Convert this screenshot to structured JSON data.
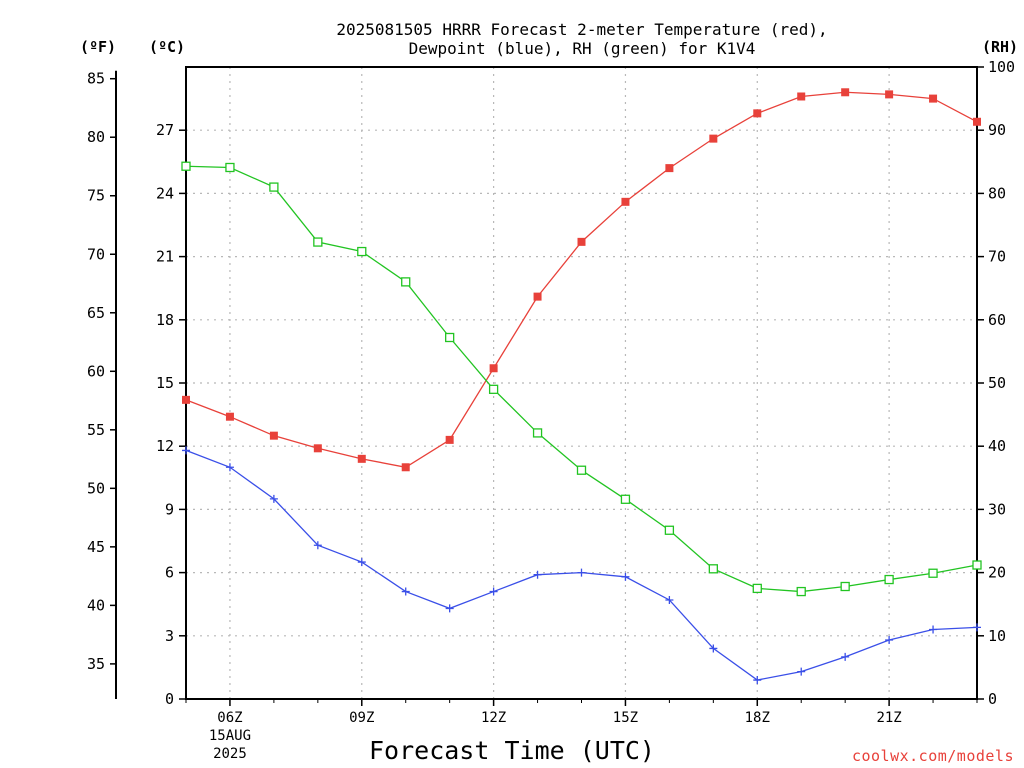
{
  "chart_data": {
    "type": "line",
    "title_lines": [
      "2025081505 HRRR Forecast 2-meter Temperature (red),",
      "Dewpoint (blue), RH (green) for K1V4"
    ],
    "xlabel": "Forecast Time (UTC)",
    "credit": "coolwx.com/models",
    "units": {
      "fahrenheit": "(ºF)",
      "celsius": "(ºC)",
      "rh": "(RH)"
    },
    "x_ticks": [
      "06Z",
      "09Z",
      "12Z",
      "15Z",
      "18Z",
      "21Z"
    ],
    "x_date": [
      "15AUG",
      "2025"
    ],
    "x_start_hour": 5,
    "x_end_hour": 23,
    "celsius_ticks": [
      0,
      3,
      6,
      9,
      12,
      15,
      18,
      21,
      24,
      27
    ],
    "fahrenheit_ticks": [
      35,
      40,
      45,
      50,
      55,
      60,
      65,
      70,
      75,
      80,
      85
    ],
    "rh_ticks": [
      0,
      10,
      20,
      30,
      40,
      50,
      60,
      70,
      80,
      90,
      100
    ],
    "ylim_celsius": [
      0,
      30
    ],
    "ylim_rh": [
      0,
      100
    ],
    "grid": true,
    "x_hours": [
      5,
      6,
      7,
      8,
      9,
      10,
      11,
      12,
      13,
      14,
      15,
      16,
      17,
      18,
      19,
      20,
      21,
      22,
      23
    ],
    "series": [
      {
        "name": "Temperature",
        "axis": "celsius",
        "color": "#e8413a",
        "marker": "filled-square",
        "values": [
          14.2,
          13.4,
          12.5,
          11.9,
          11.4,
          11.0,
          12.3,
          15.7,
          19.1,
          21.7,
          23.6,
          25.2,
          26.6,
          27.8,
          28.6,
          28.8,
          28.7,
          28.5,
          27.4
        ]
      },
      {
        "name": "Dewpoint",
        "axis": "celsius",
        "color": "#3a4fe8",
        "marker": "plus",
        "values": [
          11.8,
          11.0,
          9.5,
          7.3,
          6.5,
          5.1,
          4.3,
          5.1,
          5.9,
          6.0,
          5.8,
          4.7,
          2.4,
          0.9,
          1.3,
          2.0,
          2.8,
          3.3,
          3.4
        ]
      },
      {
        "name": "RH",
        "axis": "rh",
        "color": "#22c422",
        "marker": "open-square",
        "values": [
          84.3,
          84.1,
          81.0,
          72.3,
          70.8,
          66.0,
          57.2,
          49.0,
          42.1,
          36.2,
          31.6,
          26.7,
          20.6,
          17.5,
          17.0,
          17.8,
          18.9,
          19.9,
          21.2
        ]
      }
    ]
  }
}
